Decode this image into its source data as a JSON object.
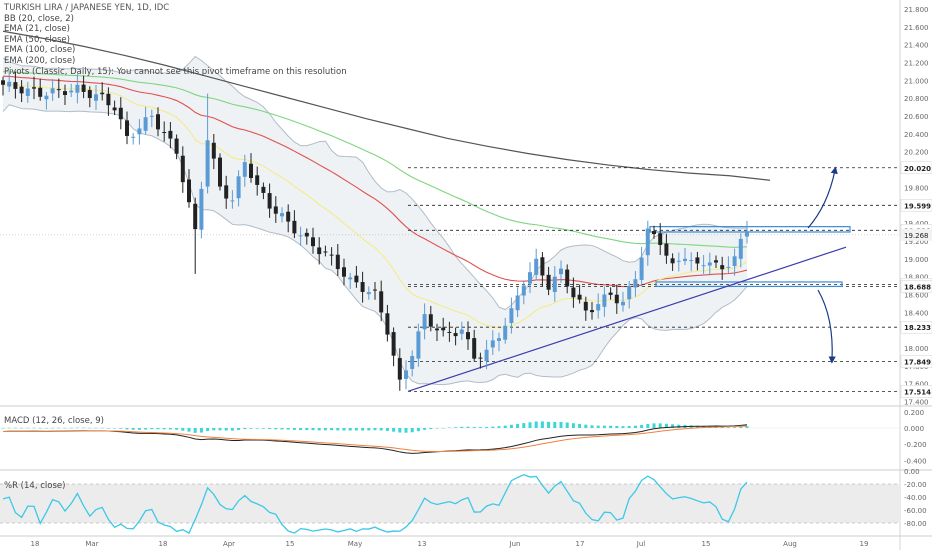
{
  "header": {
    "title": "TURKISH LIRA / JAPANESE YEN, 1D, IDC",
    "indicators": [
      "BB (20, close, 2)",
      "EMA (21, close)",
      "EMA (50, close)",
      "EMA (100, close)",
      "EMA (200, close)",
      "Pivots (Classic, Daily, 15): You cannot see this pivot timeframe on this resolution"
    ]
  },
  "colors": {
    "candle_up": "#5b9bd5",
    "candle_down": "#222222",
    "ema21": "#f2ec8a",
    "ema50": "#e05050",
    "ema100": "#7ed67e",
    "ema200": "#555555",
    "bb": "#b0bcc8",
    "trendline": "#3b3bb0",
    "arrow": "#1a3a8a",
    "macd": "#222222",
    "signal": "#f08040",
    "hist": "#3cd6d6",
    "wr": "#3cc8e8"
  },
  "chart_data": [
    {
      "type": "line",
      "name": "price",
      "x_ticks": [
        "18",
        "Mar",
        "18",
        "Apr",
        "15",
        "May",
        "13",
        "Jun",
        "17",
        "Jul",
        "15",
        "Aug",
        "19"
      ],
      "y_ticks": [
        17.4,
        17.6,
        17.8,
        18.0,
        18.2,
        18.4,
        18.6,
        18.8,
        19.0,
        19.2,
        19.4,
        19.6,
        19.8,
        20.0,
        20.2,
        20.4,
        20.6,
        20.8,
        21.0,
        21.2,
        21.4,
        21.6,
        21.8
      ],
      "ylim": [
        17.35,
        21.9
      ],
      "levels": [
        {
          "label": "20.020",
          "value": 20.02
        },
        {
          "label": "19.599",
          "value": 19.599
        },
        {
          "label": "19.319",
          "value": 19.319
        },
        {
          "label": "18.713",
          "value": 18.713
        },
        {
          "label": "18.688",
          "value": 18.688
        },
        {
          "label": "18.233",
          "value": 18.233
        },
        {
          "label": "17.849",
          "value": 17.849
        },
        {
          "label": "17.514",
          "value": 17.514
        }
      ],
      "current_price": {
        "label": "19.268",
        "value": 19.268
      },
      "ema200": [
        21.55,
        21.47,
        21.38,
        21.28,
        21.17,
        21.05,
        20.93,
        20.81,
        20.69,
        20.57,
        20.46,
        20.35,
        20.26,
        20.18,
        20.11,
        20.05,
        20.0,
        19.96,
        19.93,
        19.88
      ]
    },
    {
      "type": "bar",
      "title": "MACD (12, 26, close, 9)",
      "y_ticks": [
        -0.4,
        -0.2,
        0.0,
        0.2
      ],
      "y_tick_labels": [
        "-0.400",
        "-0.200",
        "0.000",
        "0.200"
      ],
      "ylim": [
        -0.52,
        0.26
      ]
    },
    {
      "type": "line",
      "title": "%R (14, close)",
      "y_ticks": [
        0,
        -20,
        -40,
        -60,
        -80
      ],
      "y_tick_labels": [
        "0.00",
        "-20.00",
        "-40.00",
        "-60.00",
        "-80.00"
      ],
      "ylim": [
        -100,
        0
      ],
      "overbought": -20,
      "oversold": -80
    }
  ]
}
